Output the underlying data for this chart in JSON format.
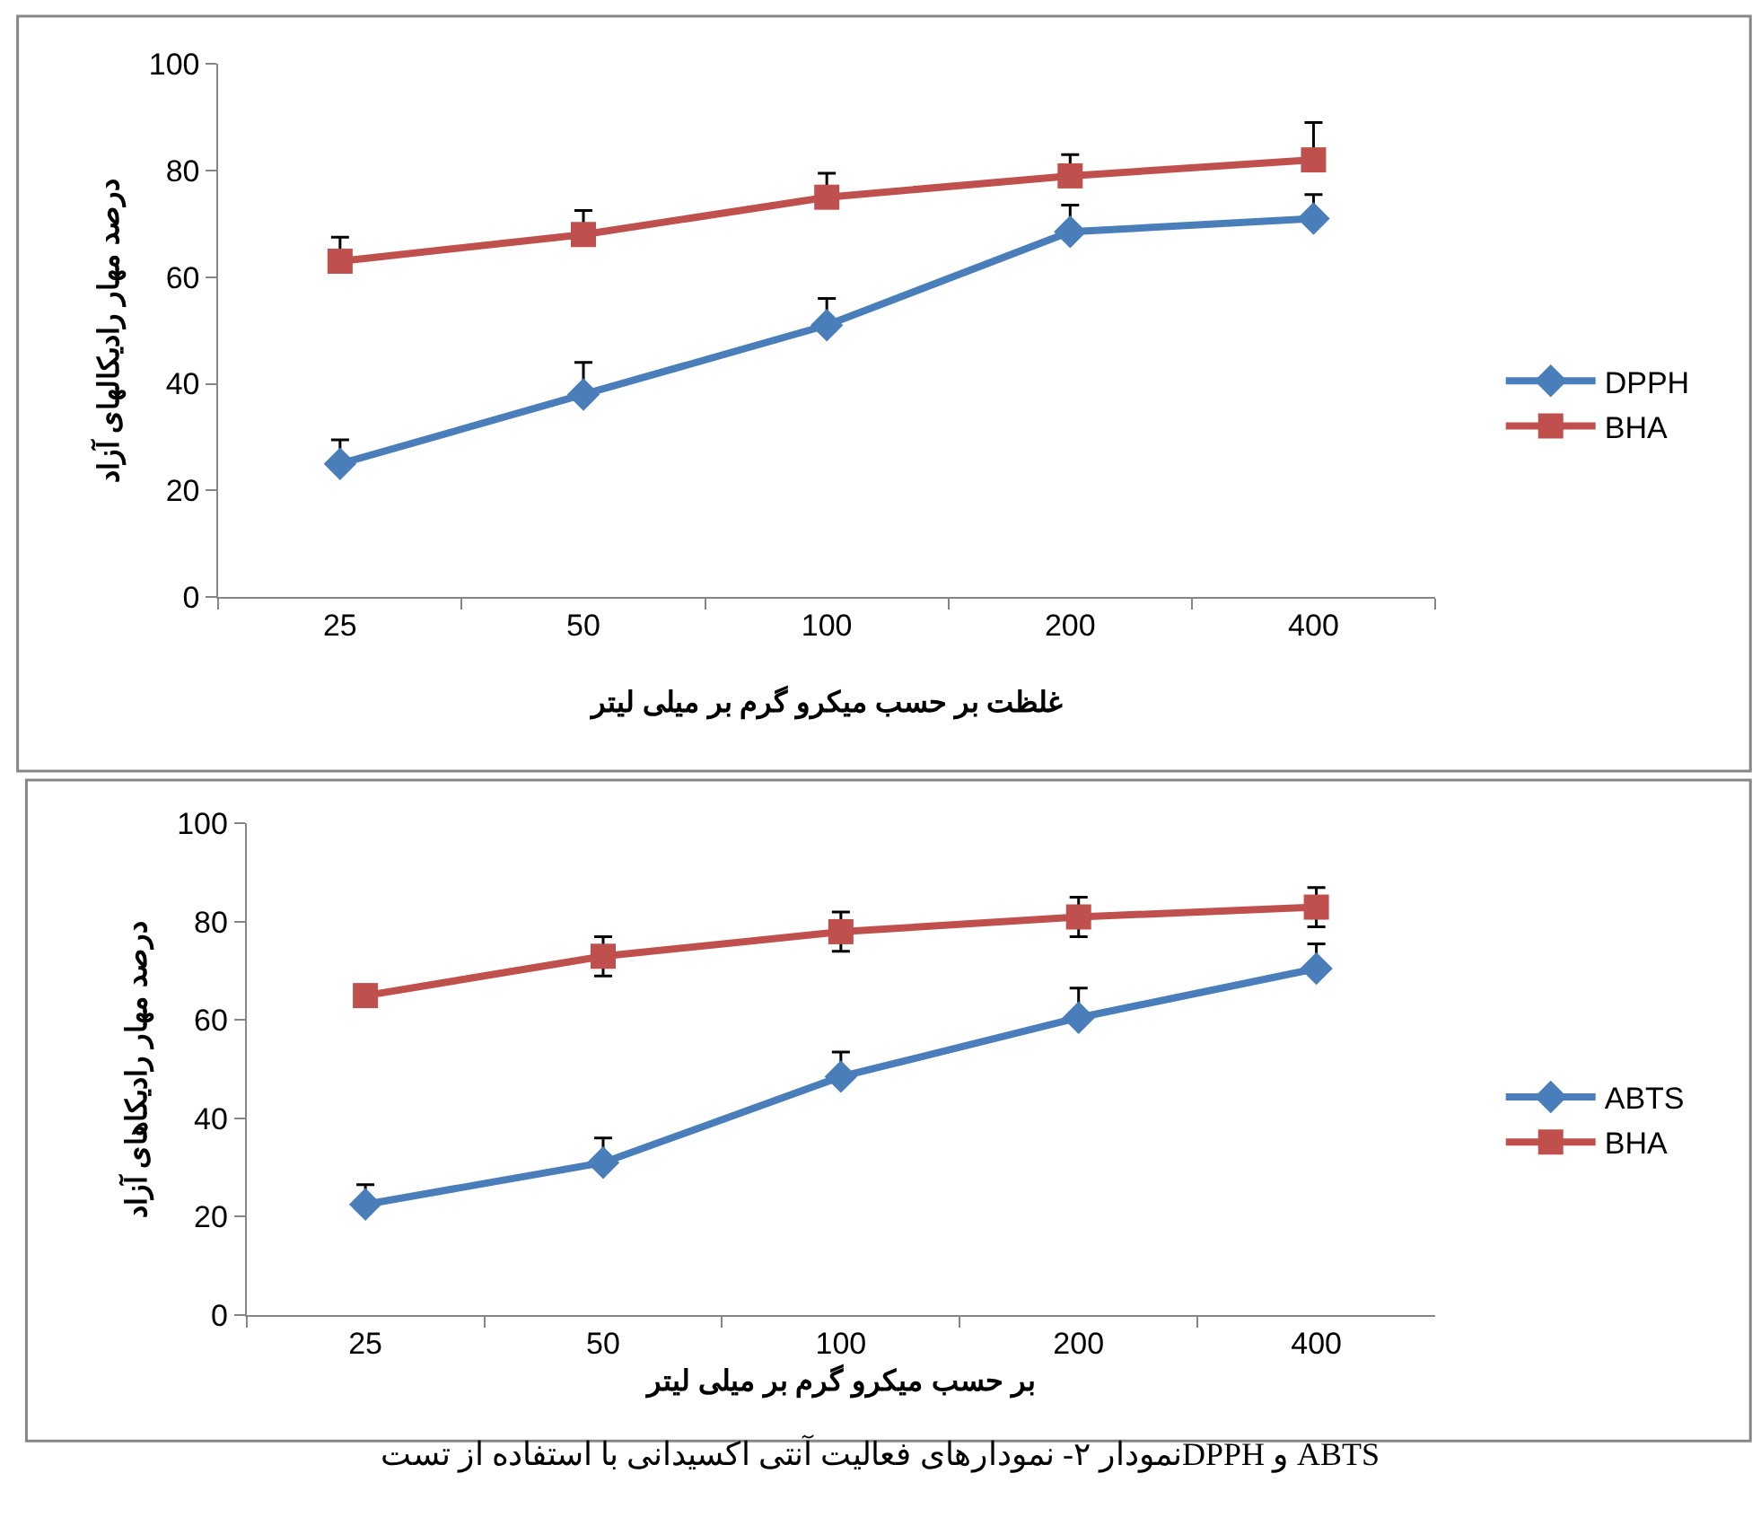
{
  "chart_data": [
    {
      "type": "line",
      "xlabel": "غلظت بر حسب میکرو گرم بر میلی لیتر",
      "ylabel": "درصد مهار رادیکالهای آزاد",
      "categories": [
        "25",
        "50",
        "100",
        "200",
        "400"
      ],
      "ylim": [
        0,
        100
      ],
      "yticks": [
        0,
        20,
        40,
        60,
        80,
        100
      ],
      "legend": "right",
      "line_style": "solid",
      "series": [
        {
          "name": "DPPH",
          "color": "#4a7ebb",
          "marker": "diamond",
          "values": [
            25,
            38,
            51,
            68.5,
            71
          ],
          "errors": [
            [
              25,
              29.5
            ],
            [
              38,
              44
            ],
            [
              51,
              56
            ],
            [
              68.5,
              73.5
            ],
            [
              71,
              75.5
            ]
          ]
        },
        {
          "name": "BHA",
          "color": "#c0504d",
          "marker": "square",
          "values": [
            63,
            68,
            75,
            79,
            82
          ],
          "errors": [
            [
              63,
              67.5
            ],
            [
              68,
              72.5
            ],
            [
              75,
              79.5
            ],
            [
              79,
              83
            ],
            [
              82,
              89
            ]
          ]
        }
      ]
    },
    {
      "type": "line",
      "xlabel": "بر حسب میکرو گرم بر میلی لیتر",
      "ylabel": "درصد مهار رادیکاهای آزاد",
      "categories": [
        "25",
        "50",
        "100",
        "200",
        "400"
      ],
      "ylim": [
        0,
        100
      ],
      "yticks": [
        0,
        20,
        40,
        60,
        80,
        100
      ],
      "legend": "right",
      "line_style": "solid",
      "annotations": [
        "نمودار ۲- نمودارهای فعالیت آنتی اکسیدانی با استفاده از تستDPPH و ABTS"
      ],
      "series": [
        {
          "name": "ABTS",
          "color": "#4a7ebb",
          "marker": "diamond",
          "values": [
            22.5,
            31,
            48.5,
            60.5,
            70.5
          ],
          "errors": [
            [
              22.5,
              26.5
            ],
            [
              31,
              36
            ],
            [
              48.5,
              53.5
            ],
            [
              60.5,
              66.5
            ],
            [
              70.5,
              75.5
            ]
          ]
        },
        {
          "name": "BHA",
          "color": "#c0504d",
          "marker": "square",
          "values": [
            65,
            73,
            78,
            81,
            83
          ],
          "errors": [
            null,
            [
              69,
              77
            ],
            [
              74,
              82
            ],
            [
              77,
              85
            ],
            [
              79,
              87
            ]
          ]
        }
      ]
    }
  ]
}
